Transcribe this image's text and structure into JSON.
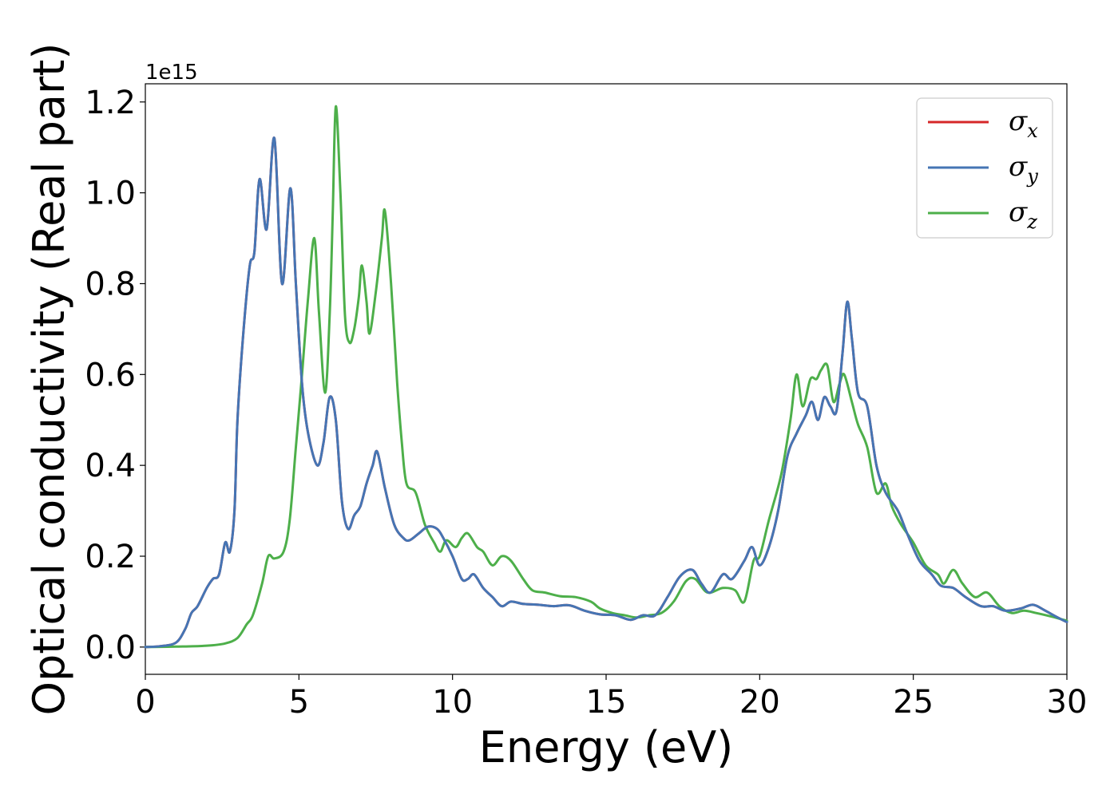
{
  "chart_data": {
    "type": "line",
    "xlabel": "Energy (eV)",
    "ylabel": "Optical conductivity (Real part)",
    "y_offset_label": "1e15",
    "xlim": [
      0,
      30
    ],
    "ylim": [
      -0.06,
      1.24
    ],
    "x_ticks": [
      0,
      5,
      10,
      15,
      20,
      25,
      30
    ],
    "x_tick_labels": [
      "0",
      "5",
      "10",
      "15",
      "20",
      "25",
      "30"
    ],
    "y_ticks": [
      0.0,
      0.2,
      0.4,
      0.6,
      0.8,
      1.0,
      1.2
    ],
    "y_tick_labels": [
      "0.0",
      "0.2",
      "0.4",
      "0.6",
      "0.8",
      "1.0",
      "1.2"
    ],
    "grid": false,
    "legend": {
      "placement": "top-right"
    },
    "series": [
      {
        "name": "σ_x",
        "symbol": "σ",
        "subscript": "x",
        "color": "#d62728",
        "points": [
          [
            0,
            0
          ],
          [
            0.5,
            0.002
          ],
          [
            1.0,
            0.01
          ],
          [
            1.3,
            0.04
          ],
          [
            1.5,
            0.075
          ],
          [
            1.7,
            0.09
          ],
          [
            2.0,
            0.13
          ],
          [
            2.2,
            0.15
          ],
          [
            2.4,
            0.16
          ],
          [
            2.6,
            0.23
          ],
          [
            2.75,
            0.21
          ],
          [
            2.9,
            0.3
          ],
          [
            3.0,
            0.5
          ],
          [
            3.2,
            0.7
          ],
          [
            3.4,
            0.84
          ],
          [
            3.55,
            0.87
          ],
          [
            3.72,
            1.03
          ],
          [
            3.95,
            0.92
          ],
          [
            4.2,
            1.12
          ],
          [
            4.45,
            0.8
          ],
          [
            4.72,
            1.01
          ],
          [
            4.9,
            0.8
          ],
          [
            5.1,
            0.58
          ],
          [
            5.3,
            0.47
          ],
          [
            5.6,
            0.4
          ],
          [
            5.8,
            0.45
          ],
          [
            6.0,
            0.55
          ],
          [
            6.2,
            0.5
          ],
          [
            6.4,
            0.32
          ],
          [
            6.6,
            0.26
          ],
          [
            6.8,
            0.29
          ],
          [
            7.0,
            0.31
          ],
          [
            7.2,
            0.36
          ],
          [
            7.4,
            0.4
          ],
          [
            7.55,
            0.43
          ],
          [
            7.8,
            0.35
          ],
          [
            8.1,
            0.27
          ],
          [
            8.4,
            0.24
          ],
          [
            8.6,
            0.235
          ],
          [
            8.9,
            0.25
          ],
          [
            9.2,
            0.265
          ],
          [
            9.5,
            0.26
          ],
          [
            9.7,
            0.24
          ],
          [
            10.0,
            0.2
          ],
          [
            10.3,
            0.15
          ],
          [
            10.5,
            0.15
          ],
          [
            10.7,
            0.16
          ],
          [
            11.0,
            0.13
          ],
          [
            11.3,
            0.11
          ],
          [
            11.6,
            0.09
          ],
          [
            11.9,
            0.1
          ],
          [
            12.3,
            0.095
          ],
          [
            12.8,
            0.093
          ],
          [
            13.3,
            0.09
          ],
          [
            13.8,
            0.092
          ],
          [
            14.3,
            0.08
          ],
          [
            14.8,
            0.072
          ],
          [
            15.3,
            0.07
          ],
          [
            15.8,
            0.06
          ],
          [
            16.2,
            0.07
          ],
          [
            16.6,
            0.07
          ],
          [
            17.0,
            0.11
          ],
          [
            17.4,
            0.155
          ],
          [
            17.8,
            0.17
          ],
          [
            18.1,
            0.14
          ],
          [
            18.4,
            0.12
          ],
          [
            18.8,
            0.16
          ],
          [
            19.1,
            0.15
          ],
          [
            19.5,
            0.19
          ],
          [
            19.75,
            0.22
          ],
          [
            20.0,
            0.18
          ],
          [
            20.3,
            0.22
          ],
          [
            20.6,
            0.3
          ],
          [
            20.9,
            0.42
          ],
          [
            21.2,
            0.47
          ],
          [
            21.5,
            0.51
          ],
          [
            21.7,
            0.54
          ],
          [
            21.9,
            0.5
          ],
          [
            22.1,
            0.55
          ],
          [
            22.3,
            0.53
          ],
          [
            22.5,
            0.52
          ],
          [
            22.7,
            0.65
          ],
          [
            22.85,
            0.76
          ],
          [
            23.0,
            0.68
          ],
          [
            23.2,
            0.56
          ],
          [
            23.5,
            0.53
          ],
          [
            23.8,
            0.4
          ],
          [
            24.1,
            0.34
          ],
          [
            24.5,
            0.3
          ],
          [
            24.8,
            0.25
          ],
          [
            25.2,
            0.19
          ],
          [
            25.6,
            0.16
          ],
          [
            25.9,
            0.135
          ],
          [
            26.3,
            0.13
          ],
          [
            26.7,
            0.11
          ],
          [
            27.2,
            0.09
          ],
          [
            27.6,
            0.09
          ],
          [
            28.0,
            0.08
          ],
          [
            28.5,
            0.085
          ],
          [
            28.9,
            0.093
          ],
          [
            29.3,
            0.08
          ],
          [
            29.7,
            0.065
          ],
          [
            30.0,
            0.055
          ]
        ]
      },
      {
        "name": "σ_y",
        "symbol": "σ",
        "subscript": "y",
        "color": "#4575b4",
        "points": [
          [
            0,
            0
          ],
          [
            0.5,
            0.002
          ],
          [
            1.0,
            0.01
          ],
          [
            1.3,
            0.04
          ],
          [
            1.5,
            0.075
          ],
          [
            1.7,
            0.09
          ],
          [
            2.0,
            0.13
          ],
          [
            2.2,
            0.15
          ],
          [
            2.4,
            0.16
          ],
          [
            2.6,
            0.23
          ],
          [
            2.75,
            0.21
          ],
          [
            2.9,
            0.3
          ],
          [
            3.0,
            0.5
          ],
          [
            3.2,
            0.7
          ],
          [
            3.4,
            0.84
          ],
          [
            3.55,
            0.87
          ],
          [
            3.72,
            1.03
          ],
          [
            3.95,
            0.92
          ],
          [
            4.2,
            1.12
          ],
          [
            4.45,
            0.8
          ],
          [
            4.72,
            1.01
          ],
          [
            4.9,
            0.8
          ],
          [
            5.1,
            0.58
          ],
          [
            5.3,
            0.47
          ],
          [
            5.6,
            0.4
          ],
          [
            5.8,
            0.45
          ],
          [
            6.0,
            0.55
          ],
          [
            6.2,
            0.5
          ],
          [
            6.4,
            0.32
          ],
          [
            6.6,
            0.26
          ],
          [
            6.8,
            0.29
          ],
          [
            7.0,
            0.31
          ],
          [
            7.2,
            0.36
          ],
          [
            7.4,
            0.4
          ],
          [
            7.55,
            0.43
          ],
          [
            7.8,
            0.35
          ],
          [
            8.1,
            0.27
          ],
          [
            8.4,
            0.24
          ],
          [
            8.6,
            0.235
          ],
          [
            8.9,
            0.25
          ],
          [
            9.2,
            0.265
          ],
          [
            9.5,
            0.26
          ],
          [
            9.7,
            0.24
          ],
          [
            10.0,
            0.2
          ],
          [
            10.3,
            0.15
          ],
          [
            10.5,
            0.15
          ],
          [
            10.7,
            0.16
          ],
          [
            11.0,
            0.13
          ],
          [
            11.3,
            0.11
          ],
          [
            11.6,
            0.09
          ],
          [
            11.9,
            0.1
          ],
          [
            12.3,
            0.095
          ],
          [
            12.8,
            0.093
          ],
          [
            13.3,
            0.09
          ],
          [
            13.8,
            0.092
          ],
          [
            14.3,
            0.08
          ],
          [
            14.8,
            0.072
          ],
          [
            15.3,
            0.07
          ],
          [
            15.8,
            0.06
          ],
          [
            16.2,
            0.07
          ],
          [
            16.6,
            0.07
          ],
          [
            17.0,
            0.11
          ],
          [
            17.4,
            0.155
          ],
          [
            17.8,
            0.17
          ],
          [
            18.1,
            0.14
          ],
          [
            18.4,
            0.12
          ],
          [
            18.8,
            0.16
          ],
          [
            19.1,
            0.15
          ],
          [
            19.5,
            0.19
          ],
          [
            19.75,
            0.22
          ],
          [
            20.0,
            0.18
          ],
          [
            20.3,
            0.22
          ],
          [
            20.6,
            0.3
          ],
          [
            20.9,
            0.42
          ],
          [
            21.2,
            0.47
          ],
          [
            21.5,
            0.51
          ],
          [
            21.7,
            0.54
          ],
          [
            21.9,
            0.5
          ],
          [
            22.1,
            0.55
          ],
          [
            22.3,
            0.53
          ],
          [
            22.5,
            0.52
          ],
          [
            22.7,
            0.65
          ],
          [
            22.85,
            0.76
          ],
          [
            23.0,
            0.68
          ],
          [
            23.2,
            0.56
          ],
          [
            23.5,
            0.53
          ],
          [
            23.8,
            0.4
          ],
          [
            24.1,
            0.34
          ],
          [
            24.5,
            0.3
          ],
          [
            24.8,
            0.25
          ],
          [
            25.2,
            0.19
          ],
          [
            25.6,
            0.16
          ],
          [
            25.9,
            0.135
          ],
          [
            26.3,
            0.13
          ],
          [
            26.7,
            0.11
          ],
          [
            27.2,
            0.09
          ],
          [
            27.6,
            0.09
          ],
          [
            28.0,
            0.08
          ],
          [
            28.5,
            0.085
          ],
          [
            28.9,
            0.093
          ],
          [
            29.3,
            0.08
          ],
          [
            29.7,
            0.065
          ],
          [
            30.0,
            0.055
          ]
        ]
      },
      {
        "name": "σ_z",
        "symbol": "σ",
        "subscript": "z",
        "color": "#4daf4a",
        "points": [
          [
            0,
            0
          ],
          [
            1.0,
            0.001
          ],
          [
            2.0,
            0.003
          ],
          [
            2.6,
            0.008
          ],
          [
            3.0,
            0.02
          ],
          [
            3.3,
            0.05
          ],
          [
            3.5,
            0.07
          ],
          [
            3.8,
            0.14
          ],
          [
            4.0,
            0.2
          ],
          [
            4.2,
            0.195
          ],
          [
            4.5,
            0.21
          ],
          [
            4.7,
            0.28
          ],
          [
            4.9,
            0.44
          ],
          [
            5.1,
            0.6
          ],
          [
            5.3,
            0.77
          ],
          [
            5.5,
            0.9
          ],
          [
            5.65,
            0.74
          ],
          [
            5.85,
            0.56
          ],
          [
            6.0,
            0.73
          ],
          [
            6.1,
            0.95
          ],
          [
            6.2,
            1.19
          ],
          [
            6.35,
            1.0
          ],
          [
            6.5,
            0.73
          ],
          [
            6.65,
            0.67
          ],
          [
            6.8,
            0.7
          ],
          [
            6.95,
            0.77
          ],
          [
            7.05,
            0.84
          ],
          [
            7.2,
            0.76
          ],
          [
            7.3,
            0.69
          ],
          [
            7.5,
            0.78
          ],
          [
            7.7,
            0.9
          ],
          [
            7.8,
            0.96
          ],
          [
            8.0,
            0.8
          ],
          [
            8.2,
            0.58
          ],
          [
            8.35,
            0.45
          ],
          [
            8.5,
            0.36
          ],
          [
            8.8,
            0.34
          ],
          [
            9.1,
            0.27
          ],
          [
            9.4,
            0.23
          ],
          [
            9.6,
            0.21
          ],
          [
            9.8,
            0.235
          ],
          [
            10.1,
            0.22
          ],
          [
            10.3,
            0.24
          ],
          [
            10.5,
            0.25
          ],
          [
            10.8,
            0.22
          ],
          [
            11.0,
            0.21
          ],
          [
            11.3,
            0.18
          ],
          [
            11.6,
            0.2
          ],
          [
            11.9,
            0.19
          ],
          [
            12.3,
            0.15
          ],
          [
            12.6,
            0.125
          ],
          [
            13.0,
            0.12
          ],
          [
            13.5,
            0.112
          ],
          [
            14.0,
            0.11
          ],
          [
            14.5,
            0.1
          ],
          [
            14.8,
            0.085
          ],
          [
            15.2,
            0.075
          ],
          [
            15.6,
            0.07
          ],
          [
            16.0,
            0.065
          ],
          [
            16.4,
            0.07
          ],
          [
            16.8,
            0.075
          ],
          [
            17.2,
            0.1
          ],
          [
            17.6,
            0.145
          ],
          [
            17.9,
            0.15
          ],
          [
            18.3,
            0.12
          ],
          [
            18.8,
            0.13
          ],
          [
            19.2,
            0.125
          ],
          [
            19.5,
            0.1
          ],
          [
            19.8,
            0.19
          ],
          [
            20.0,
            0.2
          ],
          [
            20.3,
            0.28
          ],
          [
            20.7,
            0.38
          ],
          [
            21.0,
            0.5
          ],
          [
            21.2,
            0.6
          ],
          [
            21.4,
            0.53
          ],
          [
            21.65,
            0.59
          ],
          [
            21.85,
            0.59
          ],
          [
            22.0,
            0.61
          ],
          [
            22.2,
            0.62
          ],
          [
            22.4,
            0.54
          ],
          [
            22.6,
            0.58
          ],
          [
            22.75,
            0.6
          ],
          [
            23.0,
            0.54
          ],
          [
            23.2,
            0.49
          ],
          [
            23.5,
            0.44
          ],
          [
            23.8,
            0.34
          ],
          [
            24.1,
            0.36
          ],
          [
            24.3,
            0.31
          ],
          [
            24.6,
            0.27
          ],
          [
            25.0,
            0.23
          ],
          [
            25.4,
            0.18
          ],
          [
            25.8,
            0.16
          ],
          [
            26.0,
            0.14
          ],
          [
            26.3,
            0.17
          ],
          [
            26.6,
            0.14
          ],
          [
            27.0,
            0.11
          ],
          [
            27.4,
            0.12
          ],
          [
            27.8,
            0.09
          ],
          [
            28.2,
            0.075
          ],
          [
            28.6,
            0.08
          ],
          [
            29.0,
            0.075
          ],
          [
            29.5,
            0.067
          ],
          [
            30.0,
            0.058
          ]
        ]
      }
    ]
  }
}
